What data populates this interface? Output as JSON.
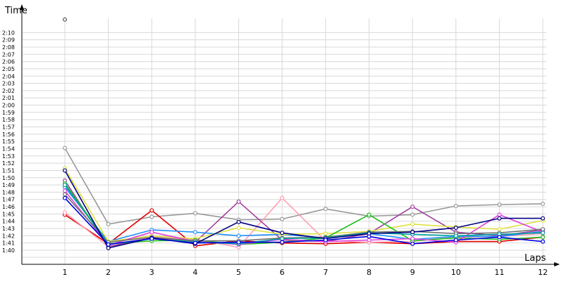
{
  "chart_data": {
    "type": "line",
    "xlabel": "Laps",
    "ylabel": "Time",
    "grid": true,
    "x": [
      1,
      2,
      3,
      4,
      5,
      6,
      7,
      8,
      9,
      10,
      11,
      12
    ],
    "y_ticks": [
      "1:40",
      "1:41",
      "1:42",
      "1:43",
      "1:44",
      "1:45",
      "1:46",
      "1:47",
      "1:48",
      "1:49",
      "1:50",
      "1:51",
      "1:52",
      "1:53",
      "1:54",
      "1:55",
      "1:56",
      "1:57",
      "1:58",
      "1:59",
      "2:00",
      "2:01",
      "2:02",
      "2:03",
      "2:04",
      "2:05",
      "2:06",
      "2:07",
      "2:08",
      "2:09",
      "2:10"
    ],
    "ylim_seconds": [
      99.0,
      131.0
    ],
    "outliers": [
      {
        "x": 1,
        "y": 131.8,
        "color": "#ffffff"
      }
    ],
    "series": [
      {
        "color": "#999999",
        "values": [
          114.1,
          103.6,
          104.6,
          105.1,
          104.2,
          104.3,
          105.7,
          104.7,
          104.9,
          106.1,
          106.3,
          106.4
        ]
      },
      {
        "color": "#e00000",
        "values": [
          104.9,
          100.9,
          105.5,
          100.6,
          101.3,
          101.0,
          100.9,
          101.1,
          100.9,
          101.2,
          101.2,
          101.8
        ]
      },
      {
        "color": "#ffa0b0",
        "values": [
          105.2,
          100.5,
          101.8,
          101.5,
          100.4,
          107.2,
          101.3,
          101.1,
          101.2,
          101.8,
          101.9,
          102.3
        ]
      },
      {
        "color": "#a040a0",
        "values": [
          109.6,
          100.5,
          101.7,
          101.1,
          106.7,
          101.4,
          101.2,
          102.3,
          106.0,
          102.5,
          102.0,
          102.8
        ]
      },
      {
        "color": "#1e90ff",
        "values": [
          108.7,
          101.2,
          102.8,
          102.5,
          102.0,
          102.2,
          101.7,
          102.3,
          101.5,
          101.9,
          101.9,
          102.6
        ]
      },
      {
        "color": "#e0e040",
        "values": [
          111.3,
          101.2,
          102.0,
          101.6,
          103.1,
          102.2,
          102.3,
          102.6,
          103.6,
          103.2,
          102.9,
          104.1
        ]
      },
      {
        "color": "#20c020",
        "values": [
          109.2,
          100.9,
          101.3,
          101.4,
          100.8,
          101.1,
          101.7,
          104.9,
          101.3,
          101.7,
          101.5,
          101.8
        ]
      },
      {
        "color": "#e040e0",
        "values": [
          108.2,
          100.7,
          102.5,
          101.2,
          100.8,
          101.5,
          101.2,
          101.4,
          101.6,
          101.1,
          104.9,
          102.5
        ]
      },
      {
        "color": "#707070",
        "values": [
          107.7,
          101.1,
          101.8,
          101.3,
          101.3,
          101.7,
          101.8,
          102.5,
          102.6,
          102.3,
          102.4,
          102.9
        ]
      },
      {
        "color": "#00a0a0",
        "values": [
          109.0,
          100.8,
          101.6,
          101.1,
          100.9,
          101.6,
          101.7,
          102.4,
          102.2,
          102.0,
          102.2,
          102.4
        ]
      },
      {
        "color": "#000080",
        "values": [
          111.0,
          100.3,
          101.7,
          100.9,
          103.9,
          102.4,
          101.6,
          102.3,
          102.5,
          103.1,
          104.4,
          104.4
        ]
      },
      {
        "color": "#0000e0",
        "values": [
          107.2,
          100.8,
          101.6,
          101.0,
          101.1,
          101.1,
          101.4,
          101.9,
          100.9,
          101.4,
          101.8,
          101.2
        ]
      }
    ]
  }
}
